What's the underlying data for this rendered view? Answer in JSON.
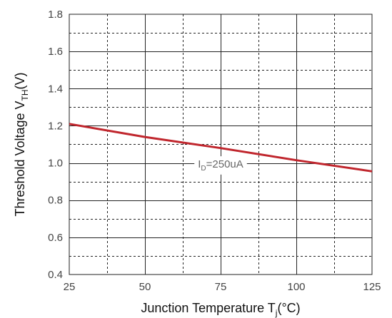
{
  "chart_data": {
    "type": "line",
    "x": [
      25,
      50,
      75,
      100,
      125
    ],
    "series": [
      {
        "values": [
          1.21,
          1.14,
          1.08,
          1.015,
          0.955
        ],
        "color": "#c0262d"
      }
    ],
    "xlabel": {
      "main": "Junction Temperature T",
      "sub": "j",
      "tail": "(°C)"
    },
    "ylabel": {
      "main": "Threshold Voltage V",
      "sub": "TH",
      "tail": "(V)"
    },
    "xlim": [
      25,
      125
    ],
    "ylim": [
      0.4,
      1.8
    ],
    "xticks": [
      "25",
      "50",
      "75",
      "100",
      "125"
    ],
    "yticks": [
      "0.4",
      "0.6",
      "0.8",
      "1.0",
      "1.2",
      "1.4",
      "1.6",
      "1.8"
    ],
    "x_minor_step": 12.5,
    "y_minor_step": 0.1,
    "grid": true,
    "annotation": {
      "main": "I",
      "sub": "D",
      "tail": "=250uA",
      "x": 75,
      "y": 0.99
    }
  }
}
